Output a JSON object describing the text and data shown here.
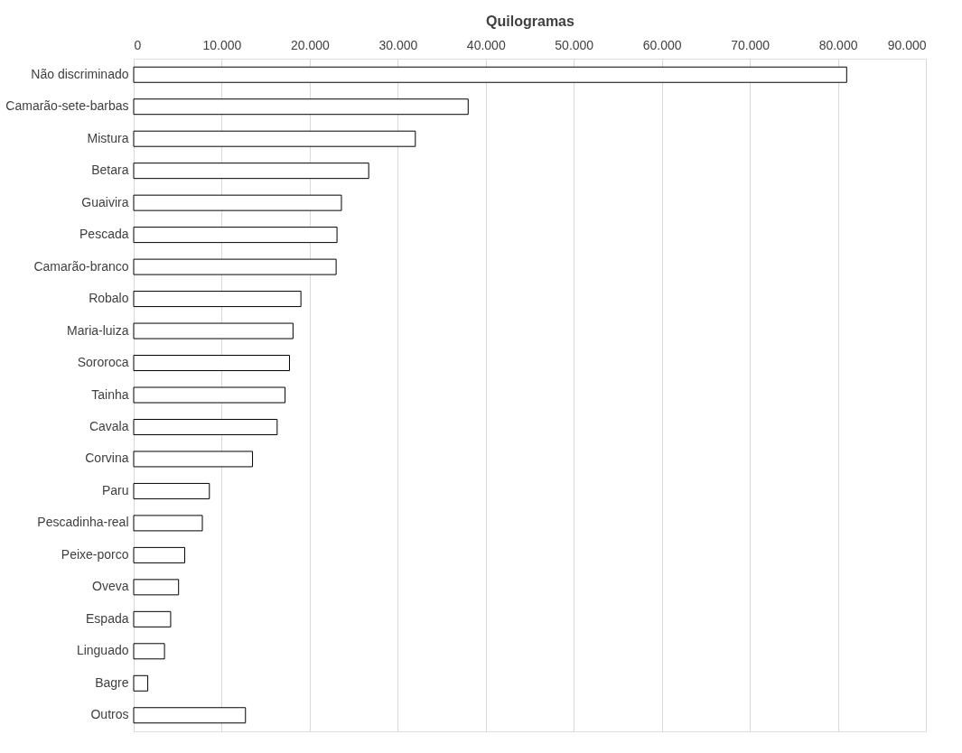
{
  "chart_data": {
    "type": "bar",
    "orientation": "horizontal",
    "xlabel": "Quilogramas",
    "categories": [
      "Não discriminado",
      "Camarão-sete-barbas",
      "Mistura",
      "Betara",
      "Guaivira",
      "Pescada",
      "Camarão-branco",
      "Robalo",
      "Maria-luiza",
      "Sororoca",
      "Tainha",
      "Cavala",
      "Corvina",
      "Paru",
      "Pescadinha-real",
      "Peixe-porco",
      "Oveva",
      "Espada",
      "Linguado",
      "Bagre",
      "Outros"
    ],
    "values": [
      81000,
      38000,
      32000,
      26700,
      23600,
      23100,
      23000,
      19000,
      18100,
      17700,
      17200,
      16300,
      13500,
      8600,
      7800,
      5800,
      5100,
      4200,
      3500,
      1600,
      12700
    ],
    "color": "#ffffff",
    "xlim": [
      0,
      90000
    ],
    "xticks": [
      {
        "value": 0,
        "label": "0"
      },
      {
        "value": 10000,
        "label": "10.000"
      },
      {
        "value": 20000,
        "label": "20.000"
      },
      {
        "value": 30000,
        "label": "30.000"
      },
      {
        "value": 40000,
        "label": "40.000"
      },
      {
        "value": 50000,
        "label": "50.000"
      },
      {
        "value": 60000,
        "label": "60.000"
      },
      {
        "value": 70000,
        "label": "70.000"
      },
      {
        "value": 80000,
        "label": "80.000"
      },
      {
        "value": 90000,
        "label": "90.000"
      }
    ],
    "grid": "x"
  }
}
